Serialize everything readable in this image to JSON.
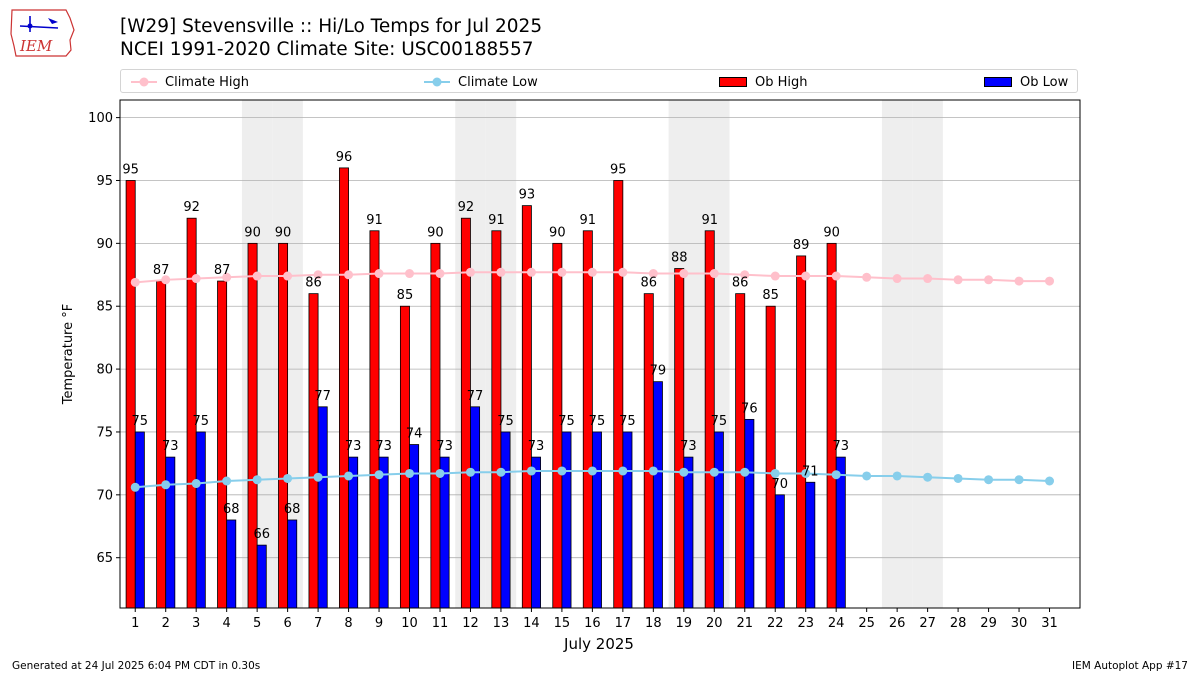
{
  "header": {
    "title": "[W29] Stevensville :: Hi/Lo Temps for Jul 2025",
    "subtitle": "NCEI 1991-2020 Climate Site: USC00188557",
    "logo_text": "IEM"
  },
  "footer": {
    "generated": "Generated at 24 Jul 2025 6:04 PM CDT in 0.30s",
    "app": "IEM Autoplot App #17"
  },
  "colors": {
    "ob_high": "#ff0000",
    "ob_low": "#0000ff",
    "climate_high": "#ffc0cb",
    "climate_low": "#87ceeb",
    "weekend_shade": "#eeeeee",
    "grid": "#b0b0b0"
  },
  "chart_data": {
    "type": "bar",
    "title": "[W29] Stevensville :: Hi/Lo Temps for Jul 2025",
    "subtitle": "NCEI 1991-2020 Climate Site: USC00188557",
    "xlabel": "July 2025",
    "ylabel": "Temperature °F",
    "ylim": [
      61,
      101.4
    ],
    "yticks": [
      65,
      70,
      75,
      80,
      85,
      90,
      95,
      100
    ],
    "grid": "horizontal",
    "legend_position": "top",
    "categories": [
      1,
      2,
      3,
      4,
      5,
      6,
      7,
      8,
      9,
      10,
      11,
      12,
      13,
      14,
      15,
      16,
      17,
      18,
      19,
      20,
      21,
      22,
      23,
      24,
      25,
      26,
      27,
      28,
      29,
      30,
      31
    ],
    "shaded_days": [
      5,
      6,
      12,
      13,
      19,
      20,
      26,
      27
    ],
    "series": [
      {
        "name": "Climate High",
        "kind": "line",
        "values": [
          86.9,
          87.1,
          87.2,
          87.3,
          87.4,
          87.4,
          87.5,
          87.5,
          87.6,
          87.6,
          87.6,
          87.7,
          87.7,
          87.7,
          87.7,
          87.7,
          87.7,
          87.6,
          87.6,
          87.6,
          87.5,
          87.4,
          87.4,
          87.4,
          87.3,
          87.2,
          87.2,
          87.1,
          87.1,
          87.0,
          87.0
        ]
      },
      {
        "name": "Climate Low",
        "kind": "line",
        "values": [
          70.6,
          70.8,
          70.9,
          71.1,
          71.2,
          71.3,
          71.4,
          71.5,
          71.6,
          71.7,
          71.7,
          71.8,
          71.8,
          71.9,
          71.9,
          71.9,
          71.9,
          71.9,
          71.8,
          71.8,
          71.8,
          71.7,
          71.7,
          71.6,
          71.5,
          71.5,
          71.4,
          71.3,
          71.2,
          71.2,
          71.1
        ]
      },
      {
        "name": "Ob High",
        "kind": "bar",
        "values": [
          95,
          87,
          92,
          87,
          90,
          90,
          86,
          96,
          91,
          85,
          90,
          92,
          91,
          93,
          90,
          91,
          95,
          86,
          88,
          91,
          86,
          85,
          89,
          90,
          null,
          null,
          null,
          null,
          null,
          null,
          null
        ]
      },
      {
        "name": "Ob Low",
        "kind": "bar",
        "values": [
          75,
          73,
          75,
          68,
          66,
          68,
          77,
          73,
          73,
          74,
          73,
          77,
          75,
          73,
          75,
          75,
          75,
          79,
          73,
          75,
          76,
          70,
          71,
          73,
          null,
          null,
          null,
          null,
          null,
          null,
          null
        ]
      }
    ]
  }
}
